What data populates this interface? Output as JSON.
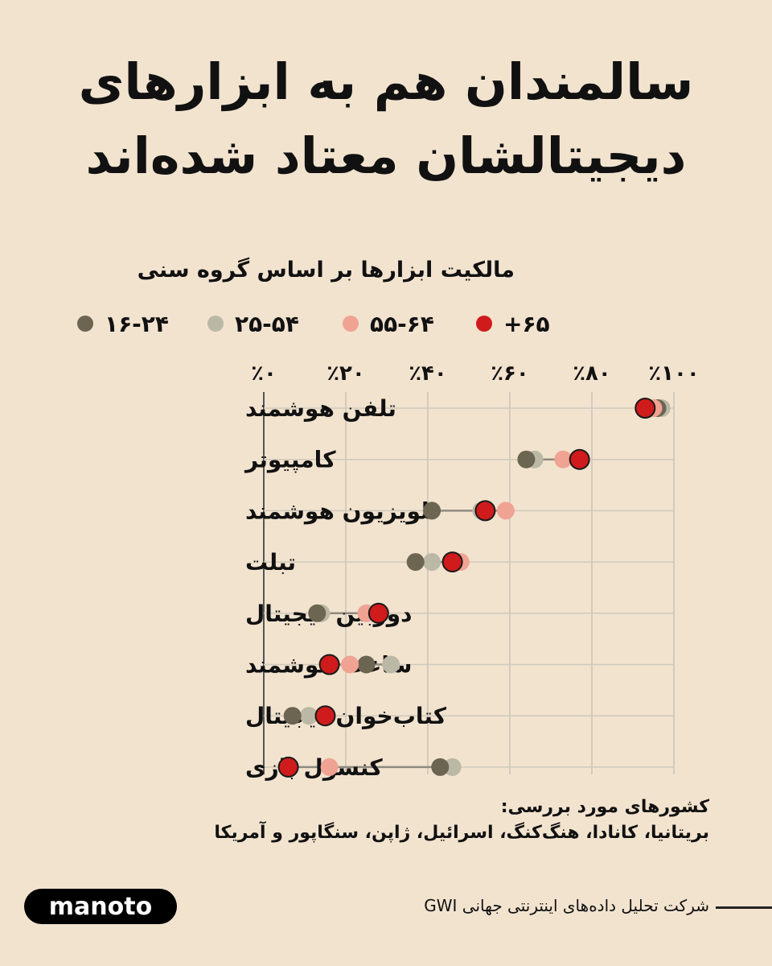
{
  "header": {
    "title_line1": "سالمندان هم به ابزارهای",
    "title_line2": "دیجیتالشان معتاد شده‌اند"
  },
  "chart_data": {
    "type": "scatter",
    "title": "مالکیت ابزارها بر اساس گروه سنی",
    "xlabel": "",
    "ylabel": "",
    "xlim": [
      0,
      100
    ],
    "xticks": [
      0,
      20,
      40,
      60,
      80,
      100
    ],
    "xtick_labels": [
      "٪۰",
      "٪۲۰",
      "٪۴۰",
      "٪۶۰",
      "٪۸۰",
      "٪۱۰۰"
    ],
    "grid": true,
    "legend_position": "top",
    "categories": [
      "تلفن هوشمند",
      "کامپیوتر",
      "تلویزیون هوشمند",
      "تبلت",
      "دوربین دیجیتال",
      "ساعت هوشمند",
      "کتاب‌خوان دیجیتال",
      "کنسول بازی"
    ],
    "series": [
      {
        "name": "۱۶-۲۴",
        "color": "#6b6552",
        "values": [
          96,
          64,
          41,
          37,
          13,
          25,
          7,
          43
        ]
      },
      {
        "name": "۲۵-۵۴",
        "color": "#bcb8a6",
        "values": [
          97,
          66,
          53,
          41,
          14,
          31,
          11,
          46
        ]
      },
      {
        "name": "۵۵-۶۴",
        "color": "#f0a393",
        "values": [
          95,
          73,
          59,
          48,
          25,
          21,
          15,
          16
        ]
      },
      {
        "name": "+۶۵",
        "color": "#cf1b1b",
        "values": [
          93,
          77,
          54,
          46,
          28,
          16,
          15,
          6
        ]
      }
    ]
  },
  "footer": {
    "countries_heading": "کشورهای مورد بررسی:",
    "countries": "بریتانیا، کانادا، هنگ‌کنگ، اسرائیل، ژاپن، سنگاپور و آمریکا",
    "logo": "manoto",
    "source": "شرکت تحلیل داده‌های اینترنتی جهانی GWI"
  }
}
